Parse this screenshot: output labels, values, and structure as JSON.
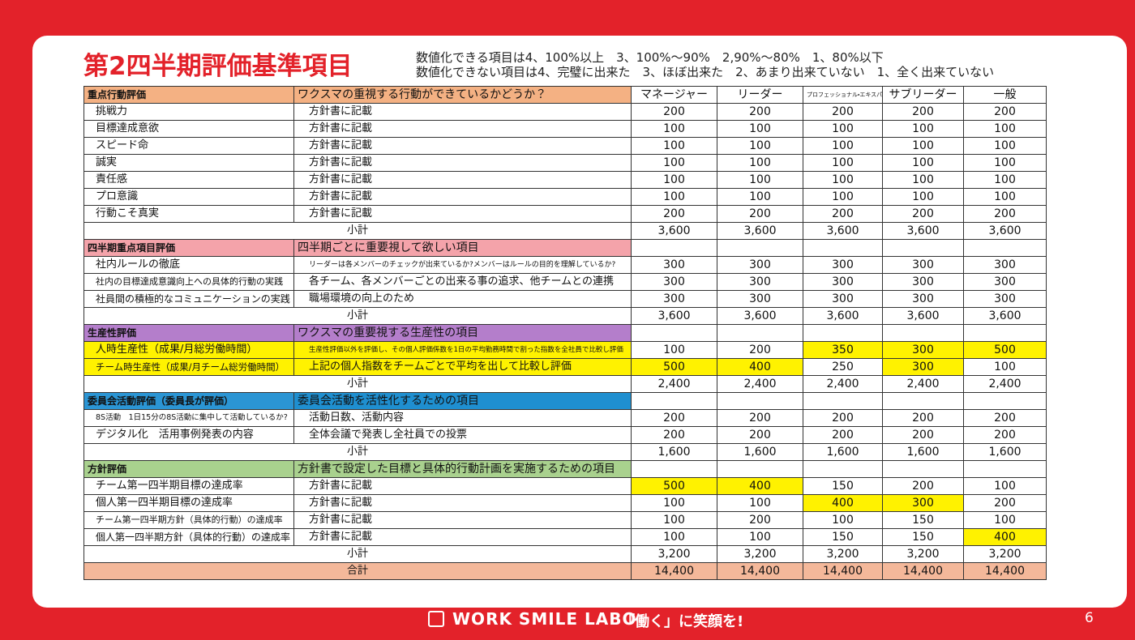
{
  "title": "第2四半期評価基準項目",
  "notes": [
    "数値化できる項目は4、100%以上　3、100%～90%　2,90%～80%　1、80%以下",
    "数値化できない項目は4、完璧に出来た　3、ほぼ出来た　2、あまり出来ていない　1、全く出来ていない"
  ],
  "table": {
    "highlight_color": "#fff200",
    "columns": [
      "マネージャー",
      "リーダー",
      "プロフェッショナル・エキスパート",
      "サブリーダー",
      "一般"
    ],
    "sections": [
      {
        "name": "重点行動評価",
        "description": "ワクスマの重視する行動ができているかどうか？",
        "name_color": "#f4b183",
        "description_color": "#f4b183",
        "rows": [
          {
            "label": "挑戦力",
            "note": "方針書に記載",
            "values": [
              "200",
              "200",
              "200",
              "200",
              "200"
            ]
          },
          {
            "label": "目標達成意欲",
            "note": "方針書に記載",
            "values": [
              "100",
              "100",
              "100",
              "100",
              "100"
            ]
          },
          {
            "label": "スピード命",
            "note": "方針書に記載",
            "values": [
              "100",
              "100",
              "100",
              "100",
              "100"
            ]
          },
          {
            "label": "誠実",
            "note": "方針書に記載",
            "values": [
              "100",
              "100",
              "100",
              "100",
              "100"
            ]
          },
          {
            "label": "責任感",
            "note": "方針書に記載",
            "values": [
              "100",
              "100",
              "100",
              "100",
              "100"
            ]
          },
          {
            "label": "プロ意識",
            "note": "方針書に記載",
            "values": [
              "100",
              "100",
              "100",
              "100",
              "100"
            ]
          },
          {
            "label": "行動こそ真実",
            "note": "方針書に記載",
            "values": [
              "200",
              "200",
              "200",
              "200",
              "200"
            ]
          }
        ],
        "subtotal_label": "小計",
        "subtotal": [
          "3,600",
          "3,600",
          "3,600",
          "3,600",
          "3,600"
        ]
      },
      {
        "name": "四半期重点項目評価",
        "description": "四半期ごとに重要視して欲しい項目",
        "name_color": "#f4a3aa",
        "description_color": "#f4a3aa",
        "rows": [
          {
            "label": "社内ルールの徹底",
            "note": "リーダーは各メンバーのチェックが出来ているか?メンバーはルールの目的を理解しているか?",
            "values": [
              "300",
              "300",
              "300",
              "300",
              "300"
            ]
          },
          {
            "label": "社内の目標達成意識向上への具体的行動の実践",
            "note": "各チーム、各メンバーごとの出来る事の追求、他チームとの連携",
            "values": [
              "300",
              "300",
              "300",
              "300",
              "300"
            ]
          },
          {
            "label": "社員間の積極的なコミュニケーションの実践",
            "note": "職場環境の向上のため",
            "values": [
              "300",
              "300",
              "300",
              "300",
              "300"
            ]
          }
        ],
        "subtotal_label": "小計",
        "subtotal": [
          "3,600",
          "3,600",
          "3,600",
          "3,600",
          "3,600"
        ]
      },
      {
        "name": "生産性評価",
        "description": "ワクスマの重要視する生産性の項目",
        "name_color": "#b47ecb",
        "description_color": "#b47ecb",
        "row_color": "#fff200",
        "rows": [
          {
            "label": "人時生産性（成果/月総労働時間）",
            "note": "生産性評価以外を評価し、その個人評価係数を1日の平均勤務時間で割った指数を全社員で比較し評価",
            "values": [
              "100",
              "200",
              "350",
              "300",
              "500"
            ],
            "highlight": [
              2,
              3,
              4
            ]
          },
          {
            "label": "チーム時生産性（成果/月チーム総労働時間）",
            "note": "上記の個人指数をチームごとで平均を出して比較し評価",
            "values": [
              "500",
              "400",
              "250",
              "300",
              "100"
            ],
            "highlight": [
              0,
              1,
              3
            ]
          }
        ],
        "subtotal_label": "小計",
        "subtotal": [
          "2,400",
          "2,400",
          "2,400",
          "2,400",
          "2,400"
        ]
      },
      {
        "name": "委員会活動評価（委員長が評価）",
        "description": "委員会活動を活性化するための項目",
        "name_color": "#2b95d4",
        "description_color": "#1f8fd0",
        "rows": [
          {
            "label": "8S活動　1日15分の8S活動に集中して活動しているか?",
            "note": "活動日数、活動内容",
            "values": [
              "200",
              "200",
              "200",
              "200",
              "200"
            ]
          },
          {
            "label": "デジタル化　活用事例発表の内容",
            "note": "全体会議で発表し全社員での投票",
            "values": [
              "200",
              "200",
              "200",
              "200",
              "200"
            ]
          }
        ],
        "subtotal_label": "小計",
        "subtotal": [
          "1,600",
          "1,600",
          "1,600",
          "1,600",
          "1,600"
        ]
      },
      {
        "name": "方針評価",
        "description": "方針書で設定した目標と具体的行動計画を実施するための項目",
        "name_color": "#a9d18e",
        "description_color": "#a9d18e",
        "rows": [
          {
            "label": "チーム第一四半期目標の達成率",
            "note": "方針書に記載",
            "values": [
              "500",
              "400",
              "150",
              "200",
              "100"
            ],
            "highlight": [
              0,
              1
            ]
          },
          {
            "label": "個人第一四半期目標の達成率",
            "note": "方針書に記載",
            "values": [
              "100",
              "100",
              "400",
              "300",
              "200"
            ],
            "highlight": [
              2,
              3
            ]
          },
          {
            "label": "チーム第一四半期方針（具体的行動）の達成率",
            "note": "方針書に記載",
            "values": [
              "100",
              "200",
              "100",
              "150",
              "100"
            ]
          },
          {
            "label": "個人第一四半期方針（具体的行動）の達成率",
            "note": "方針書に記載",
            "values": [
              "100",
              "100",
              "150",
              "150",
              "400"
            ],
            "highlight": [
              4
            ]
          }
        ],
        "subtotal_label": "小計",
        "subtotal": [
          "3,200",
          "3,200",
          "3,200",
          "3,200",
          "3,200"
        ]
      }
    ],
    "total_label": "合計",
    "total_color": "#f4b89a",
    "total": [
      "14,400",
      "14,400",
      "14,400",
      "14,400",
      "14,400"
    ]
  },
  "footer": {
    "brand": "WORK SMILE LABO",
    "tagline": "「働く」に笑顔を!",
    "page": "6"
  }
}
